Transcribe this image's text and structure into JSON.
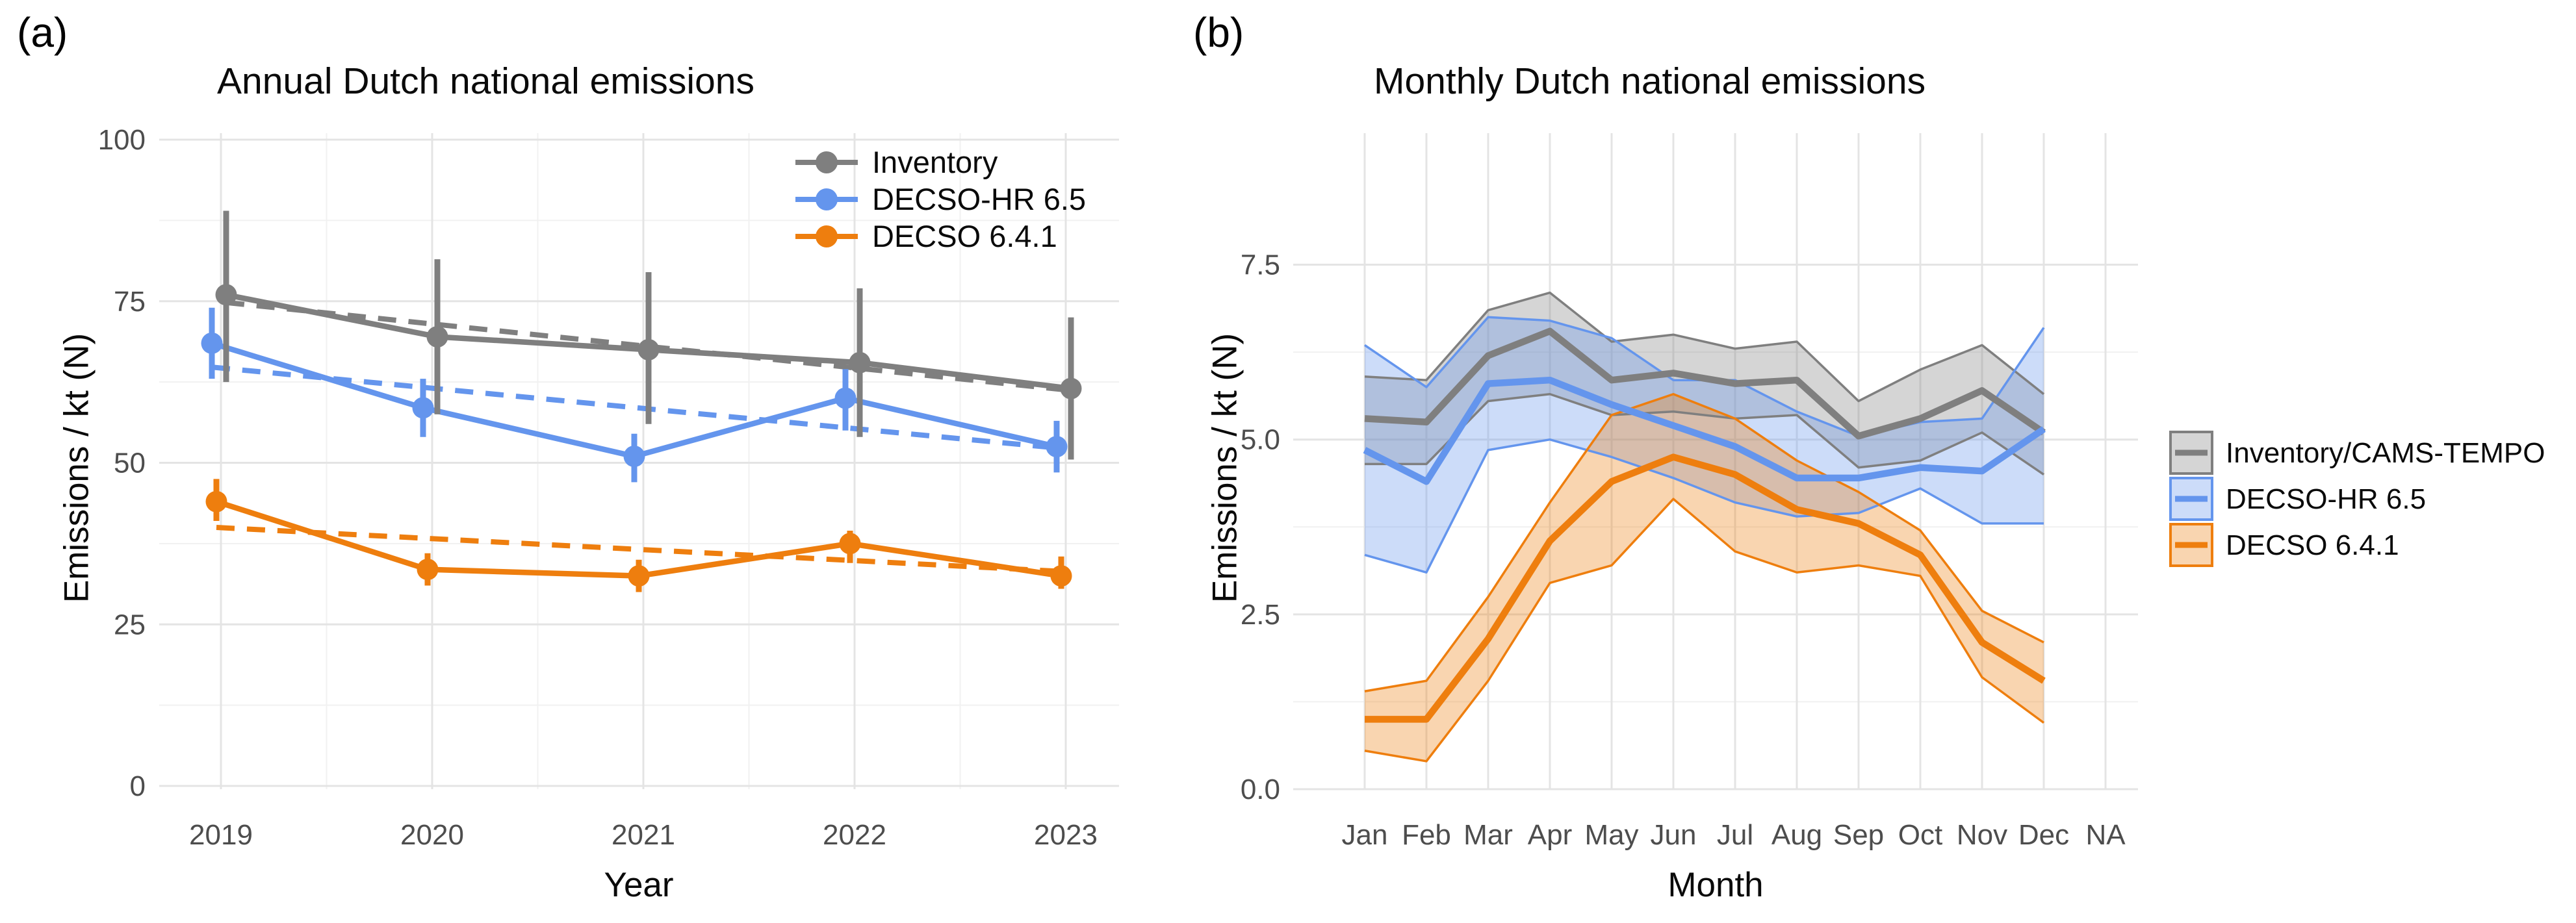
{
  "panel_letters": {
    "a": "(a)",
    "b": "(b)"
  },
  "chart_data": [
    {
      "id": "a",
      "type": "line",
      "title": "Annual Dutch national emissions",
      "xlabel": "Year",
      "ylabel": "Emissions / kt (N)",
      "categories": [
        "2019",
        "2020",
        "2021",
        "2022",
        "2023"
      ],
      "yticks": [
        0,
        25,
        50,
        75,
        100
      ],
      "ytick_labels": [
        "0",
        "25",
        "50",
        "75",
        "100"
      ],
      "yminor": [
        12.5,
        37.5,
        62.5,
        87.5
      ],
      "ylim": [
        0,
        101
      ],
      "grid": "on",
      "legend_position": "inside-top-right",
      "series": [
        {
          "name": "Inventory",
          "color": "#7F7F7F",
          "marker": "circle",
          "values": [
            76,
            69.5,
            67.5,
            65.5,
            61.5
          ],
          "err_low": [
            62.5,
            57.5,
            56,
            54,
            50.5
          ],
          "err_high": [
            89,
            81.5,
            79.5,
            77,
            72.5
          ],
          "trend_dashed": [
            74.8,
            61.2
          ]
        },
        {
          "name": "DECSO-HR 6.5",
          "color": "#6495ED",
          "marker": "circle",
          "values": [
            68.5,
            58.5,
            51,
            60,
            52.5
          ],
          "err_low": [
            63,
            54,
            47,
            55,
            48.5
          ],
          "err_high": [
            74,
            63,
            54.5,
            64.5,
            56.5
          ],
          "trend_dashed": [
            64.8,
            52.3
          ]
        },
        {
          "name": "DECSO 6.4.1",
          "color": "#EE7E0E",
          "marker": "circle",
          "values": [
            44,
            33.5,
            32.5,
            37.5,
            32.5
          ],
          "err_low": [
            41,
            31,
            30,
            34.5,
            30.5
          ],
          "err_high": [
            47.5,
            36,
            35,
            39.5,
            35.5
          ],
          "trend_dashed": [
            40.0,
            33.2
          ]
        }
      ]
    },
    {
      "id": "b",
      "type": "area-line",
      "title": "Monthly Dutch national emissions",
      "xlabel": "Month",
      "ylabel": "Emissions / kt (N)",
      "categories": [
        "Jan",
        "Feb",
        "Mar",
        "Apr",
        "May",
        "Jun",
        "Jul",
        "Aug",
        "Sep",
        "Oct",
        "Nov",
        "Dec",
        "NA"
      ],
      "yticks": [
        0,
        2.5,
        5,
        7.5
      ],
      "ytick_labels": [
        "0.0",
        "2.5",
        "5.0",
        "7.5"
      ],
      "yminor": [
        1.25,
        3.75,
        6.25
      ],
      "ylim": [
        0,
        7.9
      ],
      "grid": "on",
      "legend_position": "right",
      "note": "ribbon = uncertainty band; no data plotted for NA category",
      "series": [
        {
          "name": "Inventory/CAMS-TEMPO",
          "color": "#7F7F7F",
          "values": [
            5.3,
            5.25,
            6.2,
            6.55,
            5.85,
            5.95,
            5.8,
            5.85,
            5.05,
            5.3,
            5.7,
            5.1
          ],
          "lower": [
            4.65,
            4.65,
            5.55,
            5.65,
            5.35,
            5.4,
            5.3,
            5.35,
            4.6,
            4.7,
            5.1,
            4.5
          ],
          "upper": [
            5.9,
            5.85,
            6.85,
            7.1,
            6.4,
            6.5,
            6.3,
            6.4,
            5.55,
            6.0,
            6.35,
            5.65
          ]
        },
        {
          "name": "DECSO-HR 6.5",
          "color": "#6495ED",
          "values": [
            4.85,
            4.4,
            5.8,
            5.85,
            5.5,
            5.2,
            4.9,
            4.45,
            4.45,
            4.6,
            4.55,
            5.15
          ],
          "lower": [
            3.35,
            3.1,
            4.85,
            5.0,
            4.75,
            4.45,
            4.1,
            3.9,
            3.95,
            4.3,
            3.8,
            3.8
          ],
          "upper": [
            6.35,
            5.75,
            6.75,
            6.7,
            6.45,
            5.85,
            5.85,
            5.4,
            5.05,
            5.25,
            5.3,
            6.6
          ]
        },
        {
          "name": "DECSO 6.4.1",
          "color": "#EE7E0E",
          "values": [
            1.0,
            1.0,
            2.15,
            3.55,
            4.4,
            4.75,
            4.5,
            4.0,
            3.8,
            3.35,
            2.1,
            1.55
          ],
          "lower": [
            0.55,
            0.4,
            1.55,
            2.95,
            3.2,
            4.15,
            3.4,
            3.1,
            3.2,
            3.05,
            1.6,
            0.95
          ],
          "upper": [
            1.4,
            1.55,
            2.75,
            4.1,
            5.35,
            5.65,
            5.3,
            4.7,
            4.25,
            3.7,
            2.55,
            2.1
          ]
        }
      ]
    }
  ],
  "style": {
    "grid_major_color": "#e4e4e4",
    "grid_minor_color": "#f1f1f1",
    "tick_label_color": "#4d4d4d",
    "ribbon_opacity": 0.33
  }
}
